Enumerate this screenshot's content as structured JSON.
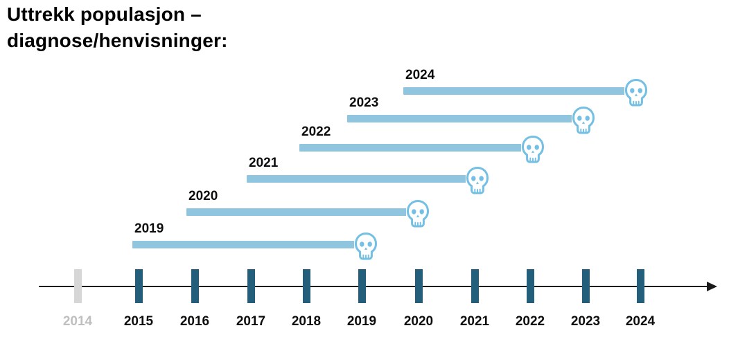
{
  "title": {
    "line1": "Uttrekk populasjon –",
    "line2": "diagnose/henvisninger:"
  },
  "chart_data": {
    "type": "bar",
    "variant": "horizontal-timeline-gantt",
    "title": "Uttrekk populasjon – diagnose/henvisninger:",
    "xlabel": "",
    "ylabel": "",
    "x_axis": {
      "ticks": [
        "2014",
        "2015",
        "2016",
        "2017",
        "2018",
        "2019",
        "2020",
        "2021",
        "2022",
        "2023",
        "2024"
      ],
      "inactive_ticks": [
        "2014"
      ],
      "arrow": "right",
      "grid": false
    },
    "series": [
      {
        "label": "2019",
        "start_year": 2015,
        "end_year": 2019,
        "marker": "skull"
      },
      {
        "label": "2020",
        "start_year": 2016,
        "end_year": 2020,
        "marker": "skull"
      },
      {
        "label": "2021",
        "start_year": 2017,
        "end_year": 2021,
        "marker": "skull"
      },
      {
        "label": "2022",
        "start_year": 2018,
        "end_year": 2022,
        "marker": "skull"
      },
      {
        "label": "2023",
        "start_year": 2019,
        "end_year": 2023,
        "marker": "skull"
      },
      {
        "label": "2024",
        "start_year": 2020,
        "end_year": 2024,
        "marker": "skull"
      }
    ],
    "colors": {
      "bar": "#90C5E0",
      "skull_outline": "#74BFE4",
      "skull_fill": "#FFFFFF",
      "tick_active": "#235E7B",
      "tick_inactive": "#D6D6D6",
      "tick_label_inactive": "#BFBFBF",
      "axis_line": "#1A1A1A",
      "text": "#0D0D0D"
    }
  }
}
